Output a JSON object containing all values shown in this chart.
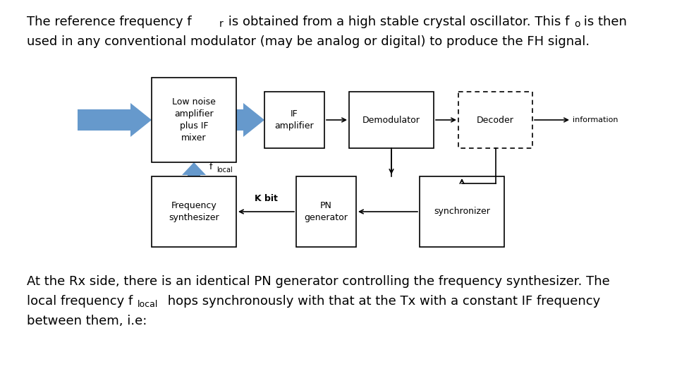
{
  "background_color": "#ffffff",
  "text_color": "#000000",
  "arrow_blue": "#6699CC",
  "font_size_main": 13,
  "font_size_box": 9,
  "font_size_small": 7,
  "font_size_kbit": 9,
  "font_size_info": 8,
  "top_line1a": "The reference frequency f",
  "top_line1_sub_r": "r",
  "top_line1b": " is obtained from a high stable crystal oscillator. This f",
  "top_line1_sub_o": "o",
  "top_line1c": " is then",
  "top_line2": "used in any conventional modulator (may be analog or digital) to produce the FH signal.",
  "bot_line1": "At the Rx side, there is an identical PN generator controlling the frequency synthesizer. The",
  "bot_line2a": "local frequency f",
  "bot_line2_sub": "local",
  "bot_line2b": " hops synchronously with that at the Tx with a constant IF frequency",
  "bot_line3": "between them, i.e:",
  "lna_label": "Low noise\namplifier\nplus IF\nmixer",
  "ifa_label": "IF\namplifier",
  "dem_label": "Demodulator",
  "dec_label": "Decoder",
  "fs_label": "Frequency\nsynthesizer",
  "pn_label": "PN\ngenerator",
  "syn_label": "synchronizer",
  "info_label": "information",
  "kbit_label": "K bit",
  "flocal_label": "f",
  "flocal_sub": "local"
}
